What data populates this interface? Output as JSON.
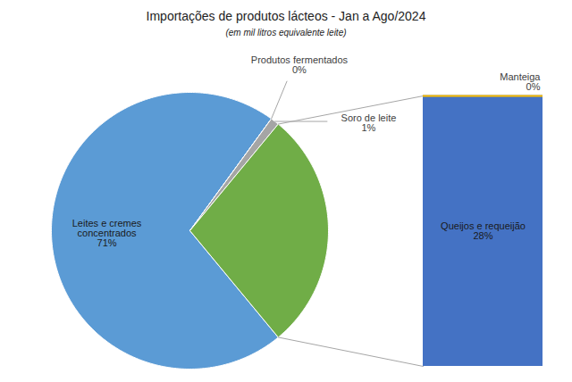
{
  "chart_data": [
    {
      "type": "pie",
      "title": "Importações de produtos lácteos - Jan a Ago/2024",
      "subtitle": "(em mil litros equivalente leite)",
      "categories": [
        "Leites e cremes concentrados",
        "Produtos fermentados",
        "Soro de leite",
        null
      ],
      "values": [
        71,
        0,
        1,
        28
      ],
      "value_labels": [
        "71%",
        "0%",
        "1%",
        null
      ],
      "colors": [
        "#5B9BD5",
        "#A5A5A5",
        "#A5A5A5",
        "#70AD47"
      ],
      "data_labels": true
    },
    {
      "type": "bar",
      "stacked": true,
      "categories": [
        null
      ],
      "ylim": [
        0,
        28
      ],
      "tick_labels": false,
      "data_labels": true,
      "series": [
        {
          "name": "Queijos e requeijão",
          "color": "#4472C4",
          "values": [
            28
          ],
          "value_labels": [
            "28%"
          ]
        },
        {
          "name": "Manteiga",
          "color": "#FFC000",
          "values": [
            0
          ],
          "value_labels": [
            "0%"
          ]
        }
      ]
    }
  ]
}
